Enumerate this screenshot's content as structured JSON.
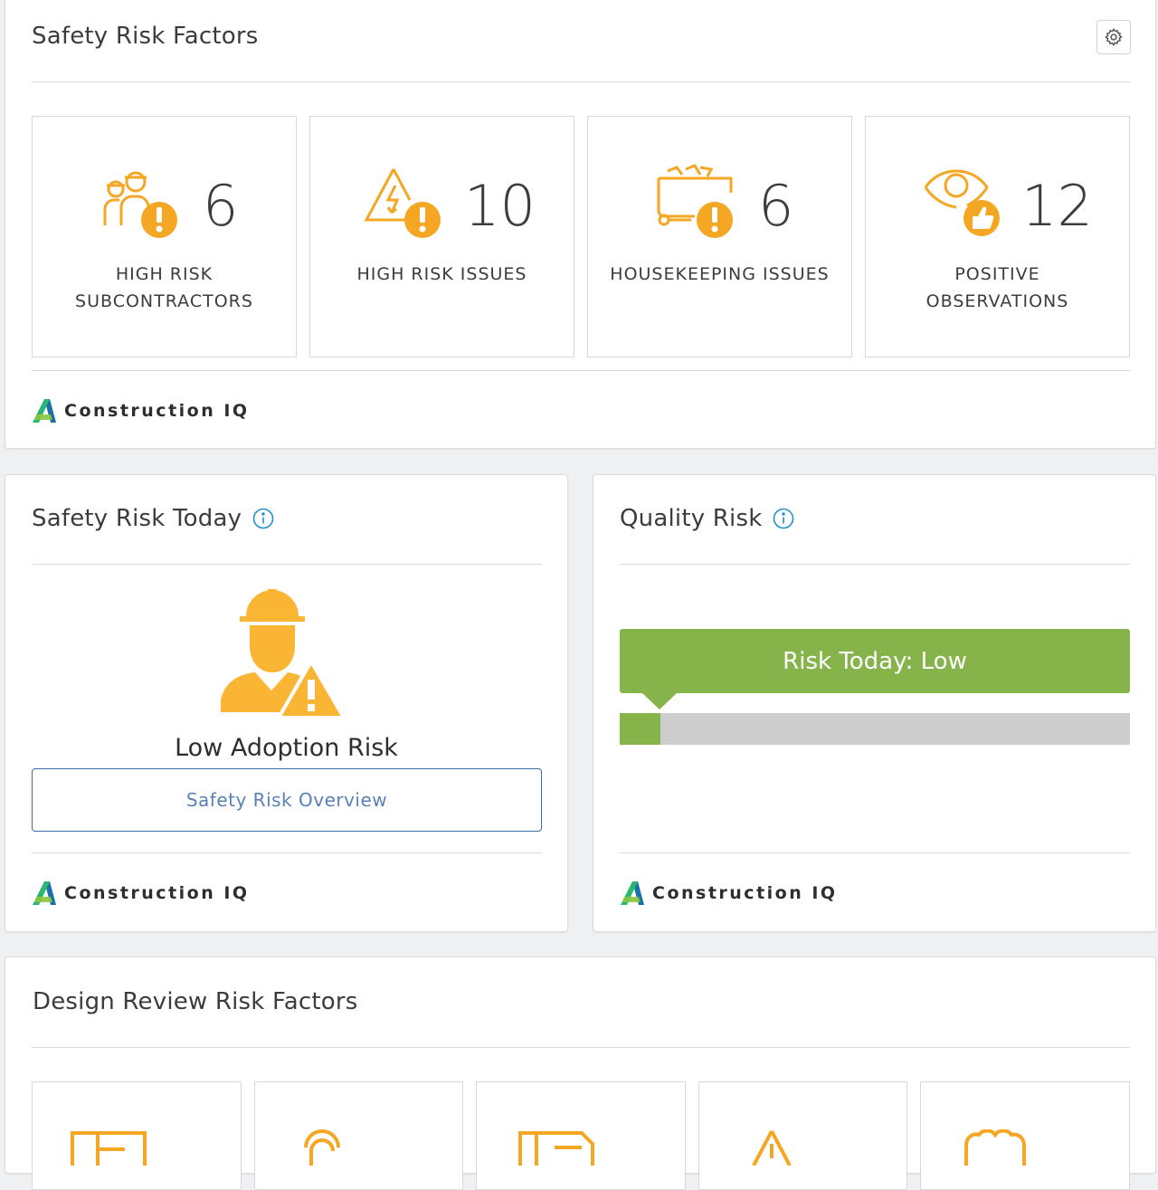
{
  "safety_risk_factors": {
    "title": "Safety Risk Factors",
    "settings_icon": "gear-icon",
    "tiles": [
      {
        "count": "6",
        "label_line1": "HIGH RISK",
        "label_line2": "SUBCONTRACTORS",
        "icon": "workers-alert-icon"
      },
      {
        "count": "10",
        "label_line1": "HIGH RISK ISSUES",
        "label_line2": "",
        "icon": "hazard-alert-icon"
      },
      {
        "count": "6",
        "label_line1": "HOUSEKEEPING ISSUES",
        "label_line2": "",
        "icon": "dumpster-alert-icon"
      },
      {
        "count": "12",
        "label_line1": "POSITIVE",
        "label_line2": "OBSERVATIONS",
        "icon": "eye-thumbs-up-icon"
      }
    ],
    "brand": "Construction IQ"
  },
  "safety_risk_today": {
    "title": "Safety Risk Today",
    "status": "Low Adoption Risk",
    "button_label": "Safety Risk Overview",
    "brand": "Construction IQ"
  },
  "quality_risk": {
    "title": "Quality Risk",
    "banner": "Risk Today: Low",
    "level_fraction": 0.08,
    "brand": "Construction IQ"
  },
  "design_review": {
    "title": "Design Review Risk Factors"
  },
  "colors": {
    "accent_orange": "#f5a623",
    "risk_green": "#86b44a",
    "link_blue": "#3b6cb0",
    "info_blue": "#1e8fd1",
    "hazard_yellow": "#fbb534"
  }
}
